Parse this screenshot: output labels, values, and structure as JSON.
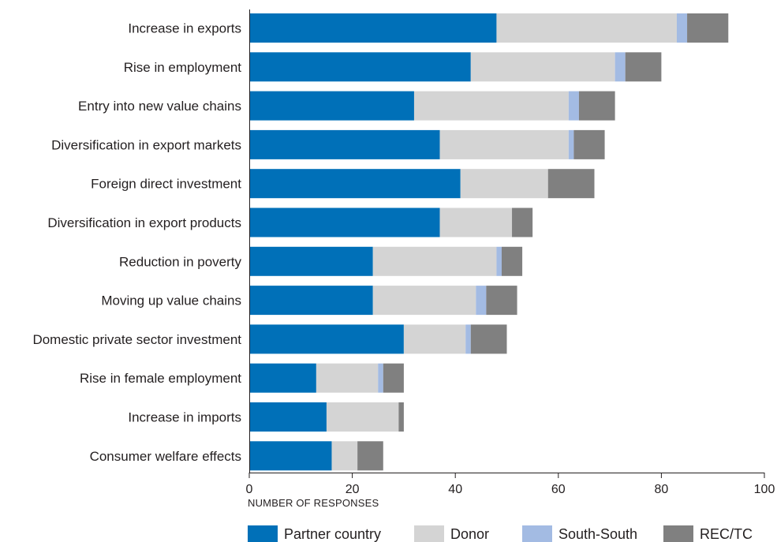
{
  "chart_data": {
    "type": "bar",
    "orientation": "horizontal",
    "stacked": true,
    "categories": [
      "Increase in exports",
      "Rise in employment",
      "Entry into new value chains",
      "Diversification in export markets",
      "Foreign direct investment",
      "Diversification in export products",
      "Reduction in poverty",
      "Moving up value chains",
      "Domestic private sector investment",
      "Rise in female employment",
      "Increase in imports",
      "Consumer welfare effects"
    ],
    "series": [
      {
        "name": "Partner country",
        "color": "#0070b8",
        "values": [
          48,
          43,
          32,
          37,
          41,
          37,
          24,
          24,
          30,
          13,
          15,
          16
        ]
      },
      {
        "name": "Donor",
        "color": "#d4d4d4",
        "values": [
          35,
          28,
          30,
          25,
          17,
          14,
          24,
          20,
          12,
          12,
          14,
          5
        ]
      },
      {
        "name": "South-South",
        "color": "#a3bbe3",
        "values": [
          2,
          2,
          2,
          1,
          0,
          0,
          1,
          2,
          1,
          1,
          0,
          0
        ]
      },
      {
        "name": "REC/TC",
        "color": "#808080",
        "values": [
          8,
          7,
          7,
          6,
          9,
          4,
          4,
          6,
          7,
          4,
          1,
          5
        ]
      }
    ],
    "xlabel": "NUMBER OF RESPONSES",
    "xlim": [
      0,
      100
    ],
    "xticks": [
      0,
      20,
      40,
      60,
      80,
      100
    ],
    "grid": false,
    "legend_position": "bottom"
  },
  "segment_colors": {
    "donor_overlay_on_rec": "#999999"
  }
}
